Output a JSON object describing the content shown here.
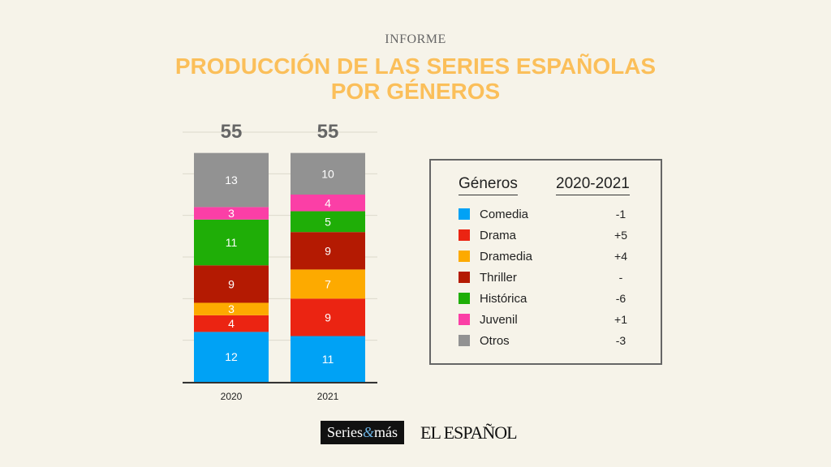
{
  "header": {
    "kicker": "INFORME",
    "title_line1": "PRODUCCIÓN DE LAS SERIES ESPAÑOLAS",
    "title_line2": "POR GÉNEROS"
  },
  "chart_data": {
    "type": "bar",
    "stacked": true,
    "categories": [
      "2020",
      "2021"
    ],
    "totals": [
      "55",
      "55"
    ],
    "ylim": [
      0,
      60
    ],
    "grid": true,
    "series": [
      {
        "name": "Comedia",
        "color": "#00a2f5",
        "values": [
          12,
          11
        ]
      },
      {
        "name": "Drama",
        "color": "#eb2412",
        "values": [
          4,
          9
        ]
      },
      {
        "name": "Dramedia",
        "color": "#fdaa00",
        "values": [
          3,
          7
        ]
      },
      {
        "name": "Thriller",
        "color": "#b41a02",
        "values": [
          9,
          9
        ]
      },
      {
        "name": "Histórica",
        "color": "#1fae07",
        "values": [
          11,
          5
        ]
      },
      {
        "name": "Juvenil",
        "color": "#fb3fa6",
        "values": [
          3,
          4
        ]
      },
      {
        "name": "Otros",
        "color": "#929292",
        "values": [
          13,
          10
        ]
      }
    ]
  },
  "legend": {
    "col1": "Géneros",
    "col2": "2020-2021",
    "changes": [
      "-1",
      "+5",
      "+4",
      "-",
      "-6",
      "+1",
      "-3"
    ]
  },
  "logos": {
    "series_a": "Series",
    "series_amp": "&",
    "series_b": "más",
    "elespanol": "EL ESPAÑOL"
  }
}
